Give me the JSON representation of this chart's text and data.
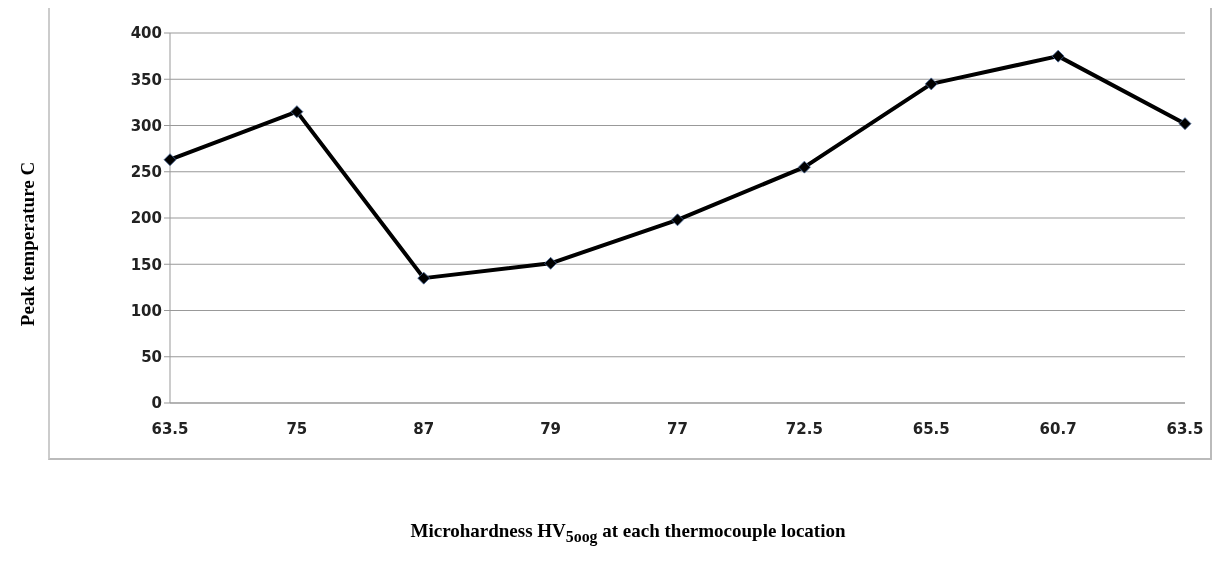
{
  "chart_data": {
    "type": "line",
    "xlabel": "Microhardness HV$_{5oog}$ at each thermocouple location",
    "ylabel": "Peak temperature C",
    "categories": [
      "63.5",
      "75",
      "87",
      "79",
      "77",
      "72.5",
      "65.5",
      "60.7",
      "63.5"
    ],
    "series": [
      {
        "color": "#000000",
        "values": [
          263,
          315,
          135,
          151,
          198,
          255,
          345,
          375,
          302
        ]
      }
    ],
    "ylim": [
      0,
      400
    ],
    "yticks": [
      0,
      50,
      100,
      150,
      200,
      250,
      300,
      350,
      400
    ],
    "grid": "y",
    "marker": "diamond",
    "line_style": "solid",
    "legend": false
  }
}
